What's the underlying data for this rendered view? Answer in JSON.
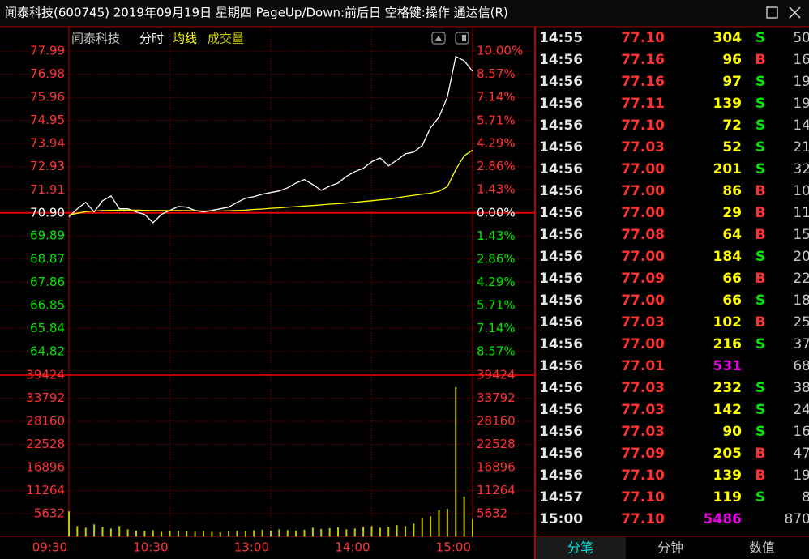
{
  "window": {
    "title": "闻泰科技(600745) 2019年09月19日 星期四 PageUp/Down:前后日 空格键:操作 通达信(R)"
  },
  "chart_data": [
    {
      "type": "line",
      "title": "闻泰科技",
      "subtitle": "分时",
      "x": [
        0,
        5,
        10,
        15,
        20,
        25,
        30,
        35,
        40,
        45,
        50,
        55,
        60,
        65,
        70,
        75,
        80,
        85,
        90,
        95,
        100,
        105,
        110,
        115,
        120,
        125,
        130,
        135,
        140,
        145,
        150,
        155,
        160,
        165,
        170,
        175,
        180,
        185,
        190,
        195,
        200,
        205,
        210,
        215,
        220,
        225,
        230,
        235,
        240
      ],
      "xlim": [
        0,
        240
      ],
      "xticks": [
        {
          "value": 0,
          "label": "09:30"
        },
        {
          "value": 60,
          "label": "10:30"
        },
        {
          "value": 120,
          "label": "13:00"
        },
        {
          "value": 180,
          "label": "14:00"
        },
        {
          "value": 240,
          "label": "15:00"
        }
      ],
      "ylim": [
        63.79,
        78.88
      ],
      "yticks": [
        77.99,
        76.98,
        75.96,
        74.95,
        73.94,
        72.93,
        71.91,
        {
          "value": 70.9,
          "label": "70.90"
        },
        69.89,
        68.87,
        67.86,
        66.85,
        65.84,
        64.82
      ],
      "y2lim": [
        -10.03,
        11.26
      ],
      "y2ticks": [
        {
          "value": 10,
          "label": "10.00%"
        },
        {
          "value": 8.57,
          "label": "8.57%"
        },
        {
          "value": 7.14,
          "label": "7.14%"
        },
        {
          "value": 5.71,
          "label": "5.71%"
        },
        {
          "value": 4.29,
          "label": "4.29%"
        },
        {
          "value": 2.86,
          "label": "2.86%"
        },
        {
          "value": 1.43,
          "label": "1.43%"
        },
        {
          "value": 0,
          "label": "0.00%"
        },
        {
          "value": -1.43,
          "label": "1.43%"
        },
        {
          "value": -2.86,
          "label": "2.86%"
        },
        {
          "value": -4.29,
          "label": "4.29%"
        },
        {
          "value": -5.71,
          "label": "5.71%"
        },
        {
          "value": -7.14,
          "label": "7.14%"
        },
        {
          "value": -8.57,
          "label": "8.57%"
        }
      ],
      "grid": true,
      "series": [
        {
          "color": "#ffffff",
          "values": [
            70.72,
            71.08,
            71.36,
            70.94,
            71.43,
            71.64,
            71.08,
            71.08,
            70.94,
            70.83,
            70.47,
            70.83,
            71.01,
            71.18,
            71.15,
            71.01,
            70.94,
            71.01,
            71.08,
            71.15,
            71.36,
            71.54,
            71.61,
            71.72,
            71.79,
            71.86,
            72.0,
            72.21,
            72.36,
            72.14,
            71.89,
            72.07,
            72.21,
            72.5,
            72.71,
            72.85,
            73.14,
            73.31,
            72.96,
            73.21,
            73.49,
            73.56,
            73.85,
            74.63,
            75.09,
            75.98,
            77.75,
            77.57,
            77.1
          ]
        },
        {
          "name": "均线",
          "color": "#ffff00",
          "values": [
            70.8,
            70.88,
            70.95,
            70.98,
            71.0,
            71.01,
            71.02,
            71.02,
            71.02,
            71.01,
            71.0,
            71.0,
            71.0,
            71.0,
            71.0,
            70.99,
            70.98,
            70.98,
            70.98,
            70.99,
            71.0,
            71.02,
            71.05,
            71.07,
            71.1,
            71.12,
            71.15,
            71.17,
            71.2,
            71.22,
            71.25,
            71.28,
            71.3,
            71.33,
            71.36,
            71.4,
            71.43,
            71.47,
            71.5,
            71.56,
            71.62,
            71.67,
            71.72,
            71.76,
            71.85,
            72.05,
            72.8,
            73.4,
            73.65
          ]
        }
      ]
    },
    {
      "type": "bar",
      "title": "成交量",
      "color": "#c8c800",
      "x": [
        0,
        5,
        10,
        15,
        20,
        25,
        30,
        35,
        40,
        45,
        50,
        55,
        60,
        65,
        70,
        75,
        80,
        85,
        90,
        95,
        100,
        105,
        110,
        115,
        120,
        125,
        130,
        135,
        140,
        145,
        150,
        155,
        160,
        165,
        170,
        175,
        180,
        185,
        190,
        195,
        200,
        205,
        210,
        215,
        220,
        225,
        230,
        235,
        240
      ],
      "xlim": [
        0,
        240
      ],
      "values": [
        6200,
        2600,
        2200,
        3000,
        2400,
        2000,
        2600,
        1800,
        1500,
        1400,
        1600,
        1200,
        1400,
        1500,
        1300,
        1200,
        1400,
        1200,
        1100,
        1300,
        1500,
        1400,
        1600,
        1700,
        1500,
        1800,
        1600,
        1500,
        1700,
        2200,
        1900,
        2100,
        2300,
        1800,
        2000,
        2400,
        2600,
        2200,
        2400,
        2800,
        2600,
        3200,
        4500,
        5000,
        6500,
        6800,
        36500,
        9800,
        4200
      ],
      "ylim": [
        0,
        39424
      ],
      "yticks": [
        39424,
        33792,
        28160,
        22528,
        16896,
        11264,
        5632
      ],
      "grid": true
    }
  ],
  "trades": {
    "rows": [
      [
        "14:55",
        "77.10",
        "304",
        "S",
        "50"
      ],
      [
        "14:56",
        "77.16",
        "96",
        "B",
        "16"
      ],
      [
        "14:56",
        "77.16",
        "97",
        "S",
        "19"
      ],
      [
        "14:56",
        "77.11",
        "139",
        "S",
        "19"
      ],
      [
        "14:56",
        "77.10",
        "72",
        "S",
        "14"
      ],
      [
        "14:56",
        "77.03",
        "52",
        "S",
        "21"
      ],
      [
        "14:56",
        "77.00",
        "201",
        "S",
        "32"
      ],
      [
        "14:56",
        "77.00",
        "86",
        "B",
        "10"
      ],
      [
        "14:56",
        "77.00",
        "29",
        "B",
        "11"
      ],
      [
        "14:56",
        "77.08",
        "64",
        "B",
        "15"
      ],
      [
        "14:56",
        "77.00",
        "184",
        "S",
        "20"
      ],
      [
        "14:56",
        "77.09",
        "66",
        "B",
        "22"
      ],
      [
        "14:56",
        "77.00",
        "66",
        "S",
        "18"
      ],
      [
        "14:56",
        "77.03",
        "102",
        "B",
        "25"
      ],
      [
        "14:56",
        "77.00",
        "216",
        "S",
        "37"
      ],
      [
        "14:56",
        "77.01",
        "531",
        "",
        "68"
      ],
      [
        "14:56",
        "77.03",
        "232",
        "S",
        "38"
      ],
      [
        "14:56",
        "77.03",
        "142",
        "S",
        "24"
      ],
      [
        "14:56",
        "77.03",
        "90",
        "S",
        "16"
      ],
      [
        "14:56",
        "77.09",
        "205",
        "B",
        "47"
      ],
      [
        "14:56",
        "77.10",
        "139",
        "B",
        "19"
      ],
      [
        "14:57",
        "77.10",
        "119",
        "S",
        "8"
      ],
      [
        "15:00",
        "77.10",
        "5486",
        "",
        "870"
      ]
    ],
    "tabs": [
      "分笔",
      "分钟",
      "数值"
    ]
  }
}
